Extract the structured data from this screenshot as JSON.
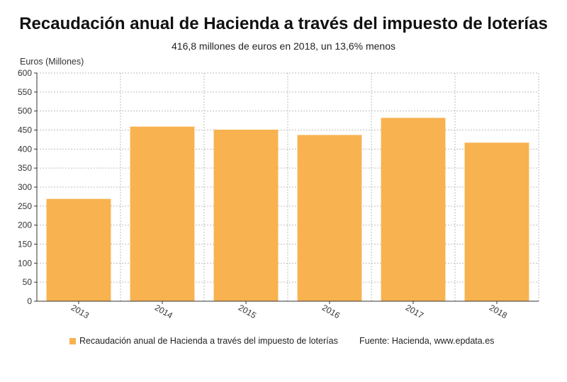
{
  "title": "Recaudación anual de Hacienda a través del impuesto de loterías",
  "subtitle": "416,8 millones de euros en 2018, un 13,6% menos",
  "source": "Fuente: Hacienda, www.epdata.es",
  "colors": {
    "bar": "#F8B24F",
    "grid": "#bdbdbd",
    "axis": "#333333"
  },
  "chart_data": {
    "type": "bar",
    "title": "Recaudación anual de Hacienda a través del impuesto de loterías",
    "subtitle": "416,8 millones de euros en 2018, un 13,6% menos",
    "xlabel": "",
    "ylabel": "Euros (Millones)",
    "categories": [
      "2013",
      "2014",
      "2015",
      "2016",
      "2017",
      "2018"
    ],
    "series": [
      {
        "name": "Recaudación anual de Hacienda a través del impuesto de loterías",
        "values": [
          269,
          459,
          451,
          437,
          482,
          416.8
        ]
      }
    ],
    "ylim": [
      0,
      600
    ],
    "yticks": [
      0,
      50,
      100,
      150,
      200,
      250,
      300,
      350,
      400,
      450,
      500,
      550,
      600
    ],
    "grid": true,
    "legend": "bottom"
  }
}
